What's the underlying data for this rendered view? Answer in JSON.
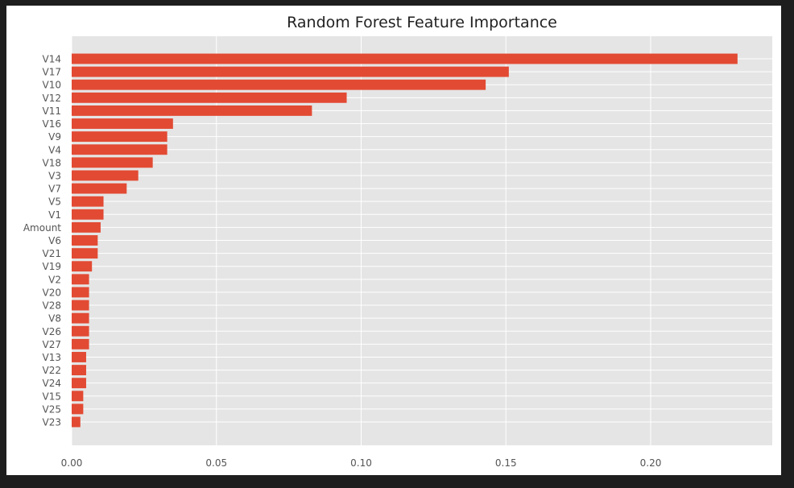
{
  "chart_data": {
    "type": "bar",
    "orientation": "horizontal",
    "title": "Random Forest Feature Importance",
    "xlabel": "",
    "ylabel": "",
    "categories": [
      "V14",
      "V17",
      "V10",
      "V12",
      "V11",
      "V16",
      "V9",
      "V4",
      "V18",
      "V3",
      "V7",
      "V5",
      "V1",
      "Amount",
      "V6",
      "V21",
      "V19",
      "V2",
      "V20",
      "V28",
      "V8",
      "V26",
      "V27",
      "V13",
      "V22",
      "V24",
      "V15",
      "V25",
      "V23"
    ],
    "values": [
      0.23,
      0.151,
      0.143,
      0.095,
      0.083,
      0.035,
      0.033,
      0.033,
      0.028,
      0.023,
      0.019,
      0.011,
      0.011,
      0.01,
      0.009,
      0.009,
      0.007,
      0.006,
      0.006,
      0.006,
      0.006,
      0.006,
      0.006,
      0.005,
      0.005,
      0.005,
      0.004,
      0.004,
      0.003
    ],
    "xlim": [
      0.0,
      0.242
    ],
    "xticks": [
      0.0,
      0.05,
      0.1,
      0.15,
      0.2
    ],
    "xtick_labels": [
      "0.00",
      "0.05",
      "0.10",
      "0.15",
      "0.20"
    ],
    "grid": true,
    "style": "ggplot",
    "bar_color": "#e24a33",
    "background_color": "#e5e5e5",
    "grid_color": "#ffffff"
  }
}
